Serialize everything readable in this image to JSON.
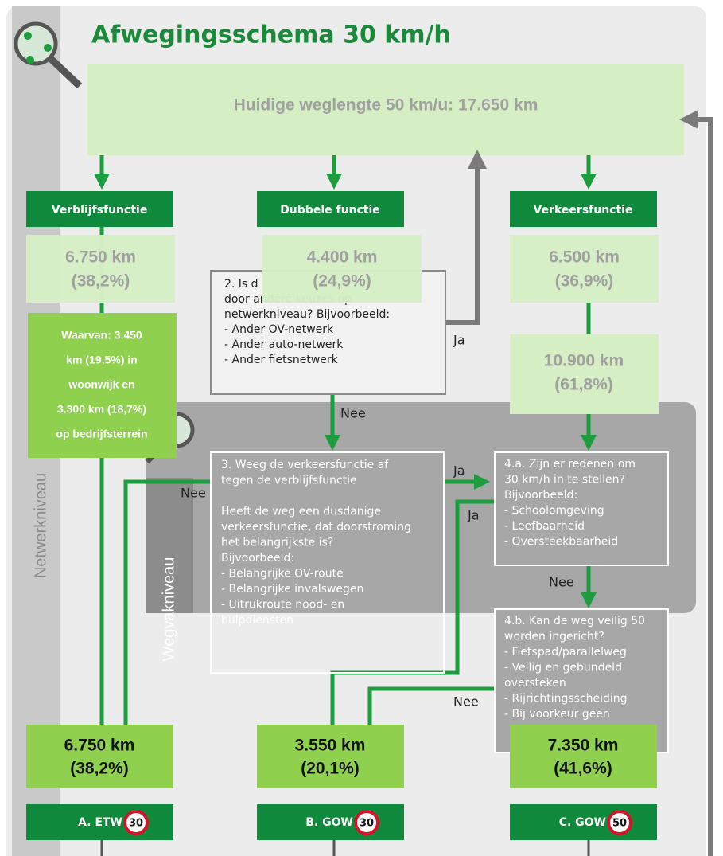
{
  "title": "Afwegingsschema 30 km/h",
  "top_box": "Huidige weglengte 50 km/u: 17.650 km",
  "levels": {
    "network": "Netwerkniveau",
    "segment": "Wegvakniveau"
  },
  "columns": [
    {
      "header": "Verblijfsfunctie",
      "share": [
        "6.750 km",
        "(38,2%)"
      ]
    },
    {
      "header": "Dubbele functie",
      "share": [
        "4.400 km",
        "(24,9%)"
      ]
    },
    {
      "header": "Verkeersfunctie",
      "share": [
        "6.500 km",
        "(36,9%)"
      ]
    }
  ],
  "subdivision": [
    "Waarvan: 3.450",
    "km (19,5%) in",
    "woonwijk en",
    "3.300 km (18,7%)",
    "op bedrijfsterrein"
  ],
  "traffic_after_check": [
    "10.900 km",
    "(61,8%)"
  ],
  "question2": [
    "2. Is d",
    "door andere keuzes op",
    "netwerkniveau? Bijvoorbeeld:",
    "- Ander OV-netwerk",
    "- Ander auto-netwerk",
    "- Ander fietsnetwerk"
  ],
  "question3": [
    "3. Weeg de verkeersfunctie af",
    "tegen de verblijfsfunctie",
    "",
    "Heeft de weg een dusdanige",
    "verkeersfunctie, dat doorstroming",
    "het belangrijkste is?",
    "Bijvoorbeeld:",
    "- Belangrijke OV-route",
    "- Belangrijke invalswegen",
    "- Uitrukroute nood- en",
    "   hulpdiensten"
  ],
  "question4a": [
    "4.a. Zijn er redenen om",
    "30 km/h in te stellen?",
    "Bijvoorbeeld:",
    "- Schoolomgeving",
    "- Leefbaarheid",
    "- Oversteekbaarheid"
  ],
  "question4b": [
    "4.b. Kan de weg veilig 50",
    "worden ingericht?",
    "- Fietspad/parallelweg",
    "- Veilig en gebundeld",
    "   oversteken",
    "- Rijrichtingsscheiding",
    "- Bij voorkeur geen"
  ],
  "edge_labels": {
    "q2_yes": "Ja",
    "q2_no": "Nee",
    "q3_yes": "Ja",
    "q3_no": "Nee",
    "q4a_yes": "Ja",
    "q4a_no": "Nee",
    "q4b_no": "Nee"
  },
  "results": [
    {
      "share": [
        "6.750 km",
        "(38,2%)"
      ],
      "label": "A. ETW",
      "limit": "30"
    },
    {
      "share": [
        "3.550 km",
        "(20,1%)"
      ],
      "label": "B. GOW",
      "limit": "30"
    },
    {
      "share": [
        "7.350 km",
        "(41,6%)"
      ],
      "label": "C. GOW",
      "limit": "50"
    }
  ]
}
